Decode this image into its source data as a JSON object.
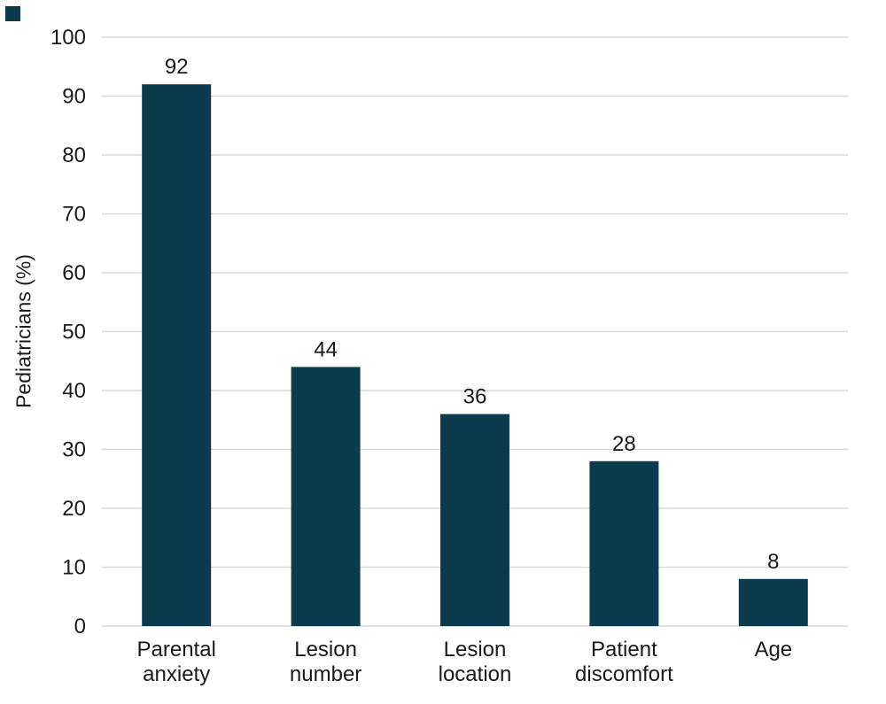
{
  "ui": {
    "background_color": "#ffffff",
    "corner_mark_color": "#0d3b4e"
  },
  "chart_data": {
    "type": "bar",
    "title": "",
    "categories": [
      "Parental anxiety",
      "Lesion number",
      "Lesion location",
      "Patient discomfort",
      "Age"
    ],
    "values": [
      92,
      44,
      36,
      28,
      8
    ],
    "value_labels": [
      "92",
      "44",
      "36",
      "28",
      "8"
    ],
    "xlabel": "",
    "ylabel": "Pediatricians (%)",
    "ylim": [
      0,
      100
    ],
    "yticks": [
      0,
      10,
      20,
      30,
      40,
      50,
      60,
      70,
      80,
      90,
      100
    ],
    "grid": true,
    "legend": "none",
    "bar_color": "#0d3b4e",
    "gridline_color": "#d9d9d9",
    "axis_text_color": "#1a1a1a"
  }
}
